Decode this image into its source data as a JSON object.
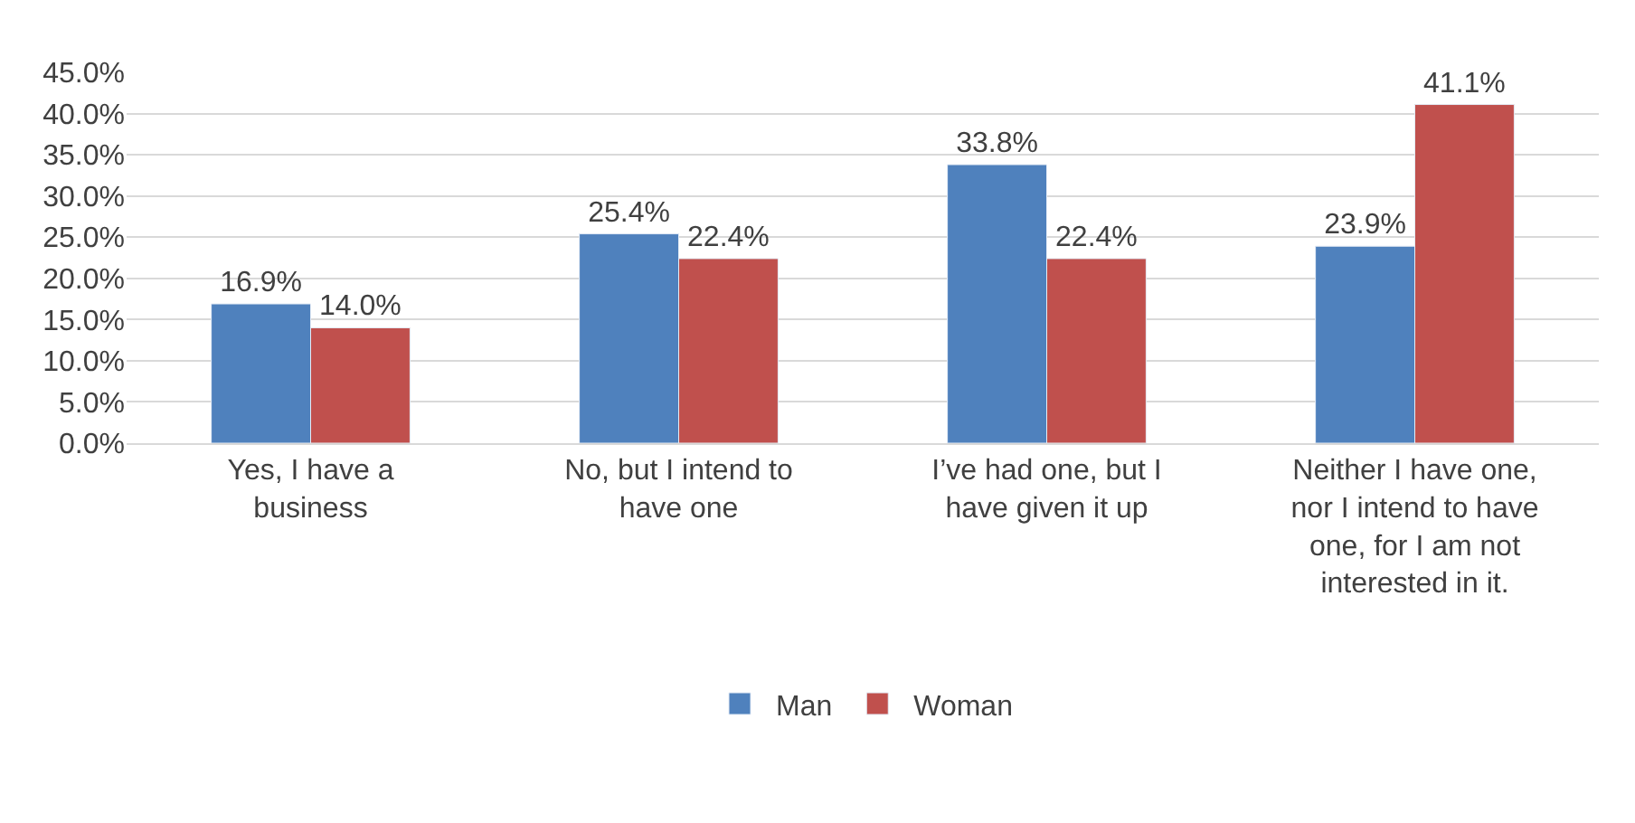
{
  "chart_data": {
    "type": "bar",
    "categories": [
      "Yes, I have a business",
      "No, but I intend to have one",
      "I’ve had one, but I have given it up",
      "Neither I have one, nor I intend to have one, for I am not interested in it."
    ],
    "series": [
      {
        "name": "Man",
        "color": "#4f81bd",
        "values": [
          16.9,
          25.4,
          33.8,
          23.9
        ],
        "value_labels": [
          "16.9%",
          "25.4%",
          "33.8%",
          "23.9%"
        ]
      },
      {
        "name": "Woman",
        "color": "#c0504d",
        "values": [
          14.0,
          22.4,
          22.4,
          41.1
        ],
        "value_labels": [
          "14.0%",
          "22.4%",
          "22.4%",
          "41.1%"
        ]
      }
    ],
    "ylim": [
      0,
      45
    ],
    "yticks": [
      {
        "value": 0,
        "label": "0.0%"
      },
      {
        "value": 5,
        "label": "5.0%"
      },
      {
        "value": 10,
        "label": "10.0%"
      },
      {
        "value": 15,
        "label": "15.0%"
      },
      {
        "value": 20,
        "label": "20.0%"
      },
      {
        "value": 25,
        "label": "25.0%"
      },
      {
        "value": 30,
        "label": "30.0%"
      },
      {
        "value": 35,
        "label": "35.0%"
      },
      {
        "value": 40,
        "label": "40.0%"
      },
      {
        "value": 45,
        "label": "45.0%"
      }
    ],
    "grid": "y",
    "legend": "bottom"
  }
}
